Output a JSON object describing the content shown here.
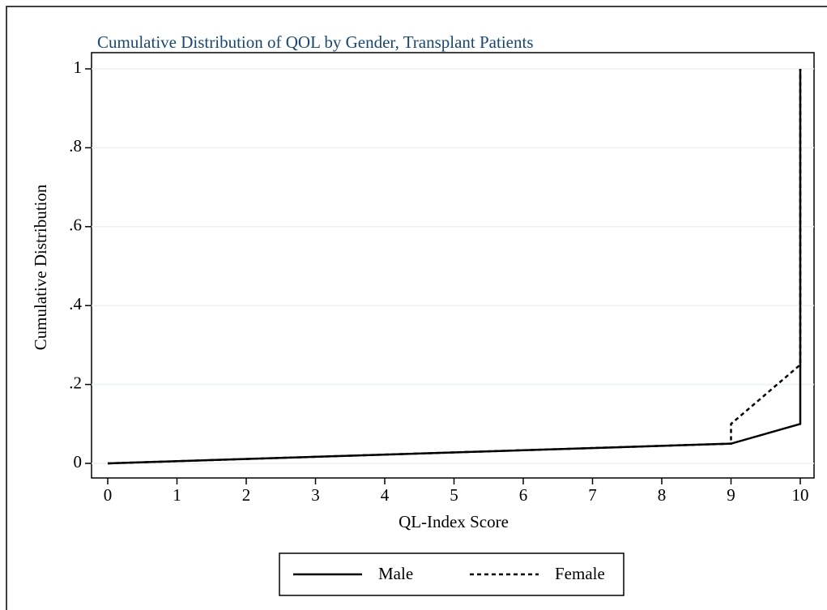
{
  "chart_data": {
    "type": "line",
    "title": "Cumulative Distribution of QOL by Gender, Transplant Patients",
    "x_label": "QL-Index Score",
    "y_label": "Cumulative Distribution",
    "xlim": [
      0,
      10
    ],
    "xticks": [
      0,
      1,
      2,
      3,
      4,
      5,
      6,
      7,
      8,
      9,
      10
    ],
    "ylim": [
      0,
      1
    ],
    "yticks": [
      0,
      {
        "value": 0.2,
        "label": ".2"
      },
      {
        "value": 0.4,
        "label": ".4"
      },
      {
        "value": 0.6,
        "label": ".6"
      },
      {
        "value": 0.8,
        "label": ".8"
      },
      1
    ],
    "grid": true,
    "legend": "bottom",
    "series": [
      {
        "name": "Male",
        "color": "#000000",
        "dash": "solid",
        "x": [
          0,
          9,
          10,
          10
        ],
        "values": [
          0,
          0.05,
          0.1,
          1
        ]
      },
      {
        "name": "Female",
        "color": "#000000",
        "dash": "dashed",
        "x": [
          0,
          9,
          9,
          10,
          10
        ],
        "values": [
          0,
          0.05,
          0.1,
          0.25,
          1
        ]
      }
    ]
  }
}
